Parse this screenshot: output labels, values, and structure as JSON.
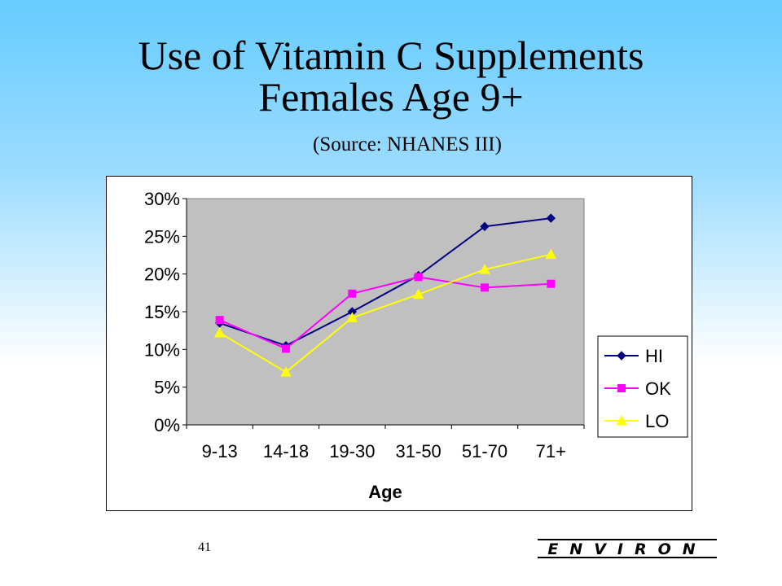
{
  "slide": {
    "title_line1": "Use of Vitamin C Supplements",
    "title_line2": "Females Age 9+",
    "source": "(Source:  NHANES III)",
    "slide_number": "41",
    "logo_text": "ENVIRON"
  },
  "chart_data": {
    "type": "line",
    "categories": [
      "9-13",
      "14-18",
      "19-30",
      "31-50",
      "51-70",
      "71+"
    ],
    "xlabel": "Age",
    "ylabel": "",
    "ylim": [
      0,
      0.3
    ],
    "yticks": [
      0,
      0.05,
      0.1,
      0.15,
      0.2,
      0.25,
      0.3
    ],
    "ytick_labels": [
      "0%",
      "5%",
      "10%",
      "15%",
      "20%",
      "25%",
      "30%"
    ],
    "grid": false,
    "plot_background": "#c0c0c0",
    "legend_position": "right",
    "series": [
      {
        "name": "HI",
        "color": "#000080",
        "marker": "diamond",
        "values": [
          0.135,
          0.105,
          0.15,
          0.198,
          0.263,
          0.274
        ]
      },
      {
        "name": "OK",
        "color": "#ff00ff",
        "marker": "square",
        "values": [
          0.139,
          0.101,
          0.174,
          0.196,
          0.182,
          0.187
        ]
      },
      {
        "name": "LO",
        "color": "#ffff00",
        "marker": "triangle",
        "values": [
          0.122,
          0.07,
          0.142,
          0.173,
          0.206,
          0.226
        ]
      }
    ]
  }
}
